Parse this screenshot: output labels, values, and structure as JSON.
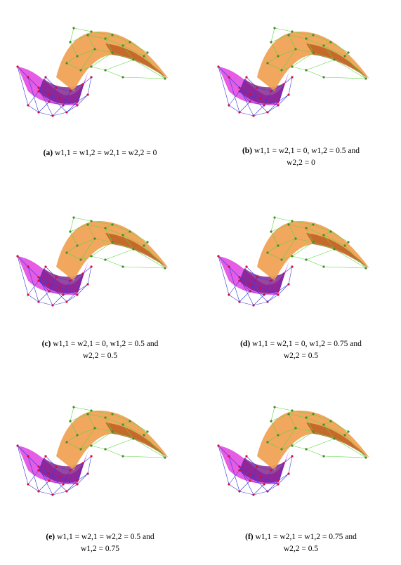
{
  "figure": {
    "colors": {
      "surface_left": "#e040e0",
      "surface_left_dark": "#7a1a86",
      "surface_right": "#f0a050",
      "surface_right_dark": "#b5561a",
      "net_left": "#3a3ae0",
      "net_right": "#5cd640",
      "points_left": "#d0103a",
      "points_right": "#4a8a2a"
    },
    "panels": [
      {
        "label": "(a)",
        "line1": "w1,1 = w1,2 = w2,1 = w2,2 = 0",
        "line2": ""
      },
      {
        "label": "(b)",
        "line1": "w1,1 = w2,1 = 0, w1,2 = 0.5 and",
        "line2": "w2,2 = 0"
      },
      {
        "label": "(c)",
        "line1": "w1,1 = w2,1 = 0, w1,2 = 0.5 and",
        "line2": "w2,2 = 0.5"
      },
      {
        "label": "(d)",
        "line1": "w1,1 = w2,1 = 0, w1,2 = 0.75 and",
        "line2": "w2,2 = 0.5"
      },
      {
        "label": "(e)",
        "line1": "w1,1 = w2,1 = w2,2 = 0.5 and",
        "line2": "w1,2 = 0.75"
      },
      {
        "label": "(f)",
        "line1": "w1,1 = w2,1 = w1,2 = 0.75 and",
        "line2": "w2,2 = 0.5"
      }
    ]
  }
}
